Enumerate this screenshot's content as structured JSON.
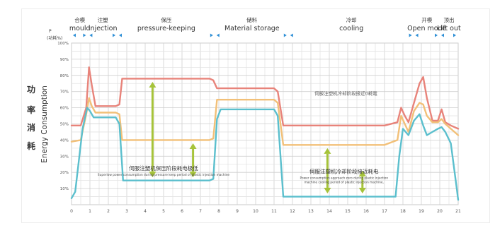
{
  "chart_data": {
    "type": "line",
    "x_ticks": [
      0,
      1,
      2,
      3,
      4,
      5,
      6,
      7,
      8,
      9,
      10,
      11,
      12,
      13,
      14,
      15,
      16,
      17,
      18,
      19,
      20,
      21
    ],
    "y_ticks": [
      "10%",
      "20%",
      "30%",
      "40%",
      "50%",
      "60%",
      "70%",
      "80%",
      "90%",
      "100%"
    ],
    "ylim": [
      0,
      100
    ],
    "xlim": [
      0,
      21
    ],
    "y_unit_line1": "P",
    "y_unit_line2": "(功耗%)",
    "ylabel_cn": [
      "功",
      "率",
      "消",
      "耗"
    ],
    "ylabel_en": "Energy Consumption",
    "phases": [
      {
        "cn": "合模",
        "en": "mould",
        "start": 0,
        "end": 0.9
      },
      {
        "cn": "注塑",
        "en": "injection",
        "start": 0.9,
        "end": 2.5
      },
      {
        "cn": "保压",
        "en": "pressure-keeping",
        "start": 2.5,
        "end": 7.8
      },
      {
        "cn": "储料",
        "en": "Material storage",
        "start": 7.8,
        "end": 11.8
      },
      {
        "cn": "冷却",
        "en": "cooling",
        "start": 11.8,
        "end": 18.6
      },
      {
        "cn": "开模",
        "en": "Open mode",
        "start": 18.6,
        "end": 20
      },
      {
        "cn": "顶出",
        "en": "Lift out",
        "start": 20,
        "end": 21
      }
    ],
    "series": [
      {
        "color": "#e8837a",
        "x": [
          0,
          0.5,
          0.8,
          0.95,
          1.1,
          1.3,
          2.4,
          2.6,
          2.75,
          7.5,
          7.7,
          7.9,
          11,
          11.2,
          11.5,
          17,
          17.7,
          17.9,
          18.1,
          18.3,
          18.6,
          18.9,
          19.1,
          19.3,
          19.6,
          19.9,
          20.1,
          20.3,
          20.6,
          21
        ],
        "y": [
          49,
          49,
          60,
          85,
          74,
          61,
          61,
          62,
          78,
          78,
          77,
          72,
          72,
          70,
          49,
          49,
          51,
          60,
          55,
          51,
          63,
          75,
          79,
          66,
          52,
          52,
          59,
          51,
          49,
          47
        ]
      },
      {
        "color": "#f2c078",
        "x": [
          0,
          0.5,
          0.8,
          0.95,
          1.1,
          1.3,
          2.4,
          2.6,
          2.75,
          7.5,
          7.7,
          7.9,
          11,
          11.2,
          11.5,
          17,
          17.7,
          17.9,
          18.1,
          18.3,
          18.6,
          18.9,
          19.1,
          19.3,
          19.6,
          19.9,
          20.1,
          20.3,
          20.6,
          21
        ],
        "y": [
          39,
          40,
          56,
          66,
          61,
          57,
          57,
          56,
          40,
          40,
          41,
          65,
          65,
          63,
          37,
          37,
          40,
          55,
          50,
          45,
          58,
          63,
          62,
          55,
          51,
          51,
          53,
          50,
          47,
          43
        ]
      },
      {
        "color": "#5bbfcd",
        "x": [
          0,
          0.2,
          0.6,
          0.85,
          1.0,
          1.2,
          2.4,
          2.6,
          2.8,
          7.5,
          7.7,
          7.9,
          8.1,
          11,
          11.2,
          11.5,
          17.3,
          17.6,
          17.8,
          18,
          18.3,
          18.6,
          18.9,
          19.1,
          19.3,
          19.6,
          19.9,
          20.1,
          20.3,
          20.6,
          20.9,
          21
        ],
        "y": [
          4,
          8,
          47,
          60,
          58,
          54,
          54,
          50,
          15,
          15,
          16,
          53,
          59,
          59,
          55,
          5,
          5,
          5,
          30,
          47,
          43,
          52,
          56,
          49,
          43,
          45,
          47,
          48,
          45,
          38,
          12,
          3
        ]
      }
    ],
    "annotations": [
      {
        "cn": "伺服注塑机保压阶段耗电极低",
        "en": "Superlow power consumption during pressure keep period of plastic injection machine",
        "x": 5.0,
        "y": 21.5
      },
      {
        "cn": "伺服注塑机冷却阶段接近耗电",
        "en_line1": "Power consumption approach zero during plastic injection",
        "en_line2": "machine cooling period of plastic injection machine,",
        "x": 14.8,
        "y": 19.5
      },
      {
        "cn": "伺服注塑机冷却阶段接近0耗電",
        "x": 14.9,
        "y": 68
      }
    ],
    "arrows": [
      {
        "x": 4.4,
        "y1": 17,
        "y2": 76
      },
      {
        "x": 6.6,
        "y1": 17,
        "y2": 38
      },
      {
        "x": 13.9,
        "y1": 7,
        "y2": 35
      },
      {
        "x": 15.8,
        "y1": 7,
        "y2": 21
      }
    ],
    "grid": true
  }
}
